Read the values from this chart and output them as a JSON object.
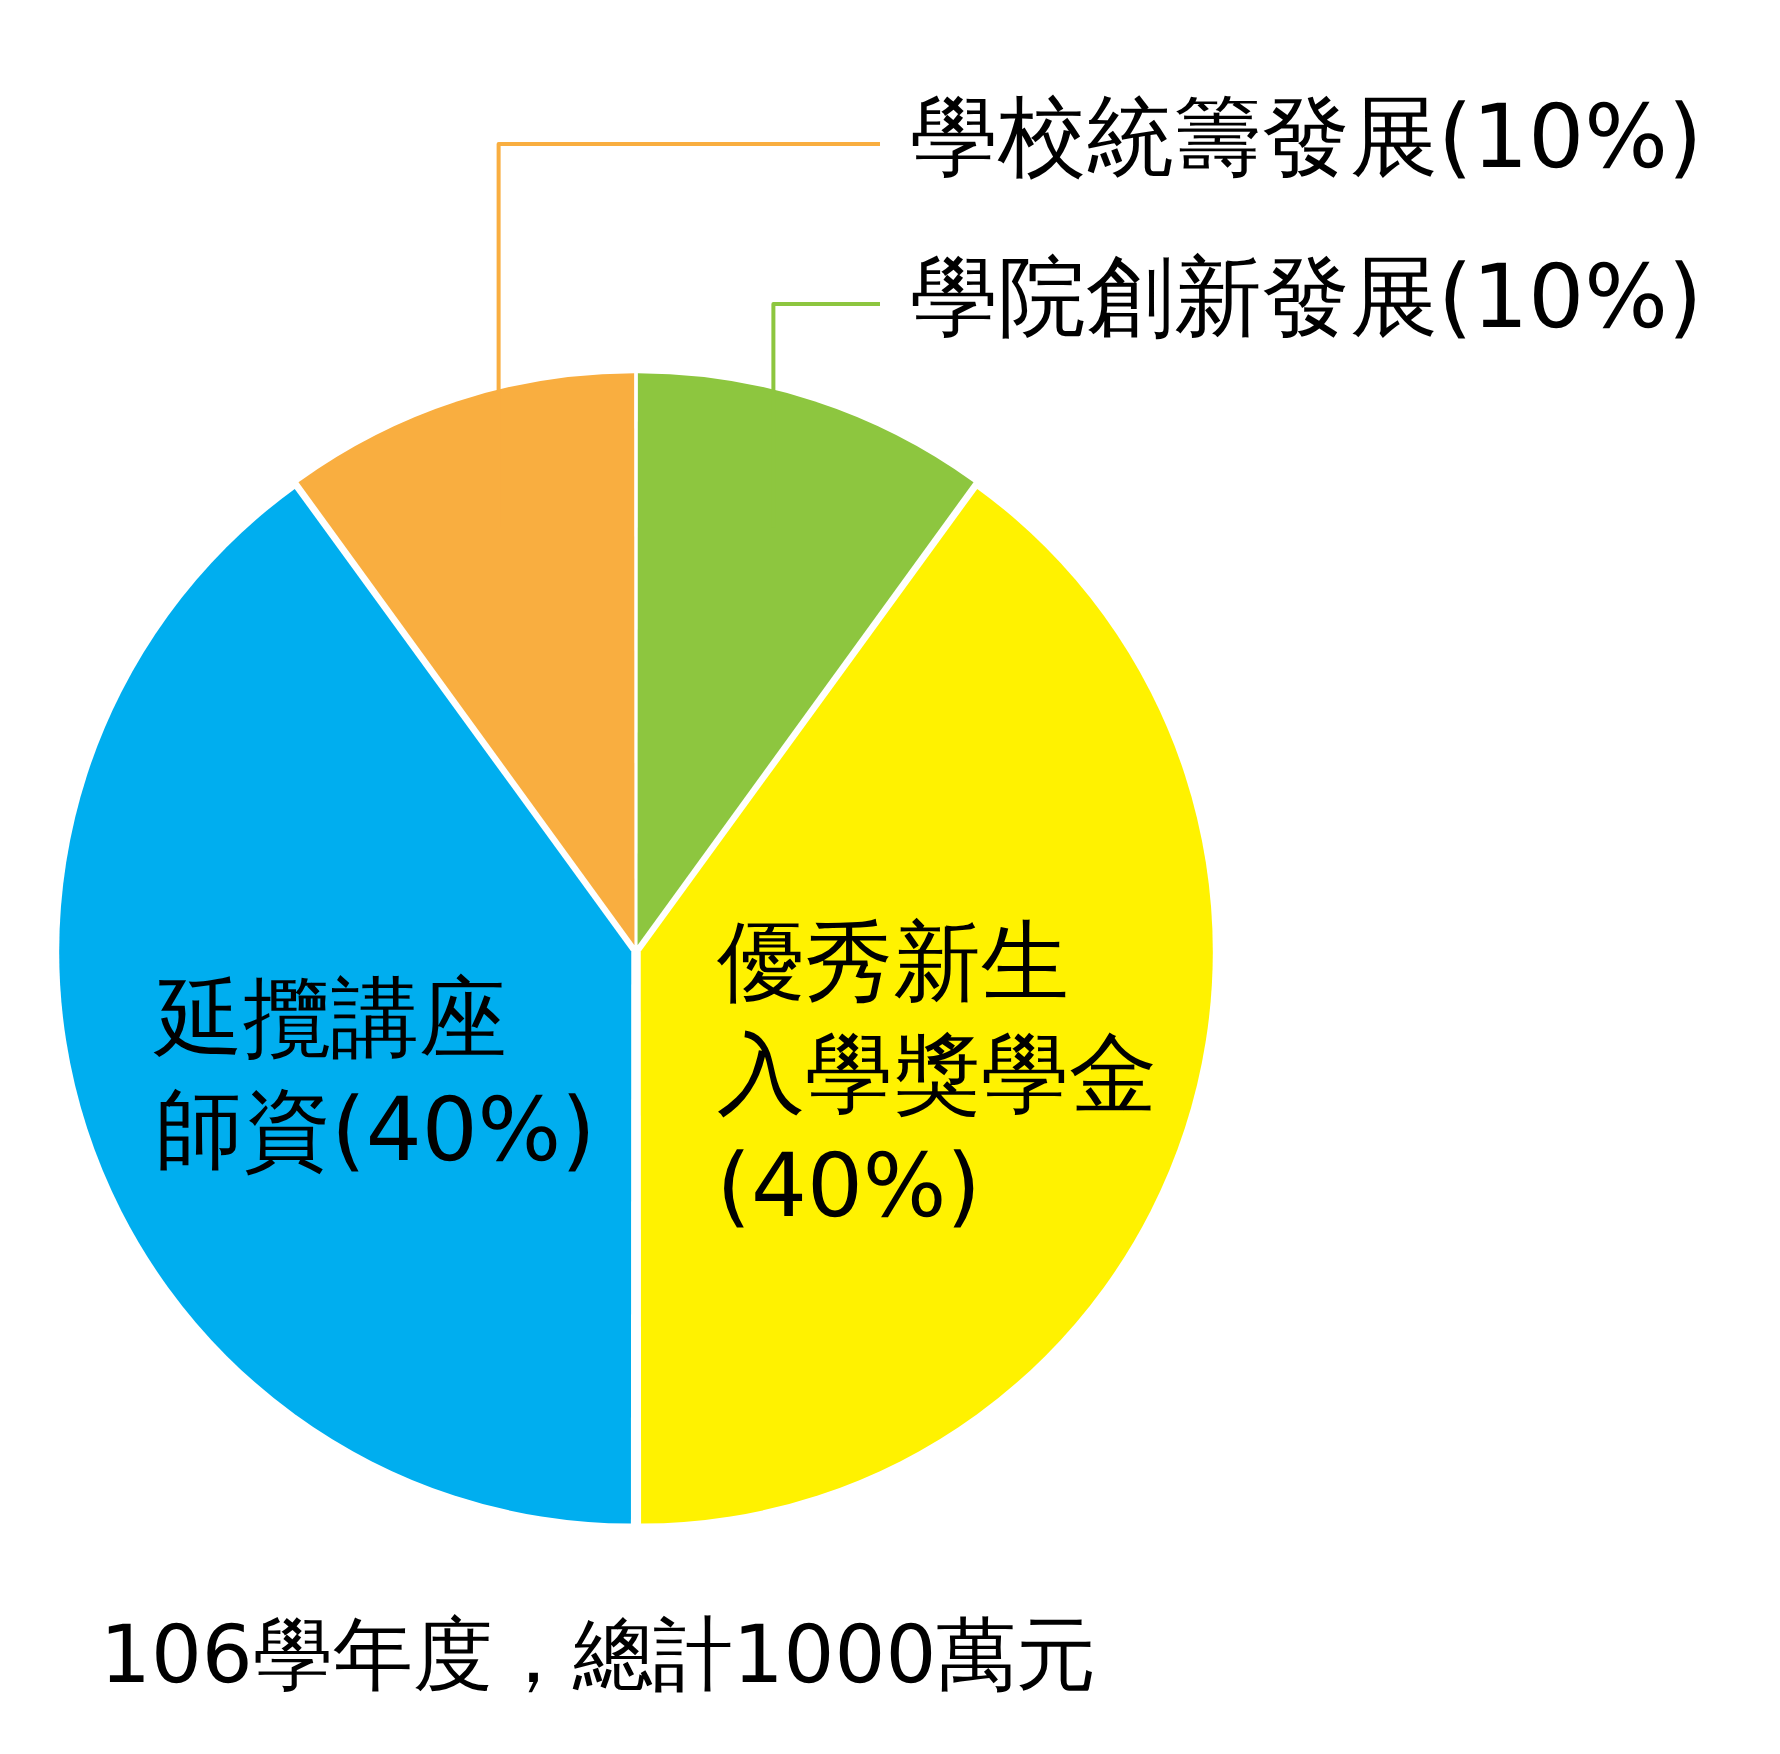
{
  "chart_data": {
    "type": "pie",
    "title": "106學年度，總計1000萬元",
    "categories": [
      "學院創新發展(10%)",
      "優秀新生入學獎學金(40%)",
      "延攬講座師資(40%)",
      "學校統籌發展(10%)"
    ],
    "values": [
      10,
      40,
      40,
      10
    ],
    "colors": [
      "#8dc63f",
      "#fff200",
      "#00aeef",
      "#f9ae40"
    ],
    "legend": false
  }
}
